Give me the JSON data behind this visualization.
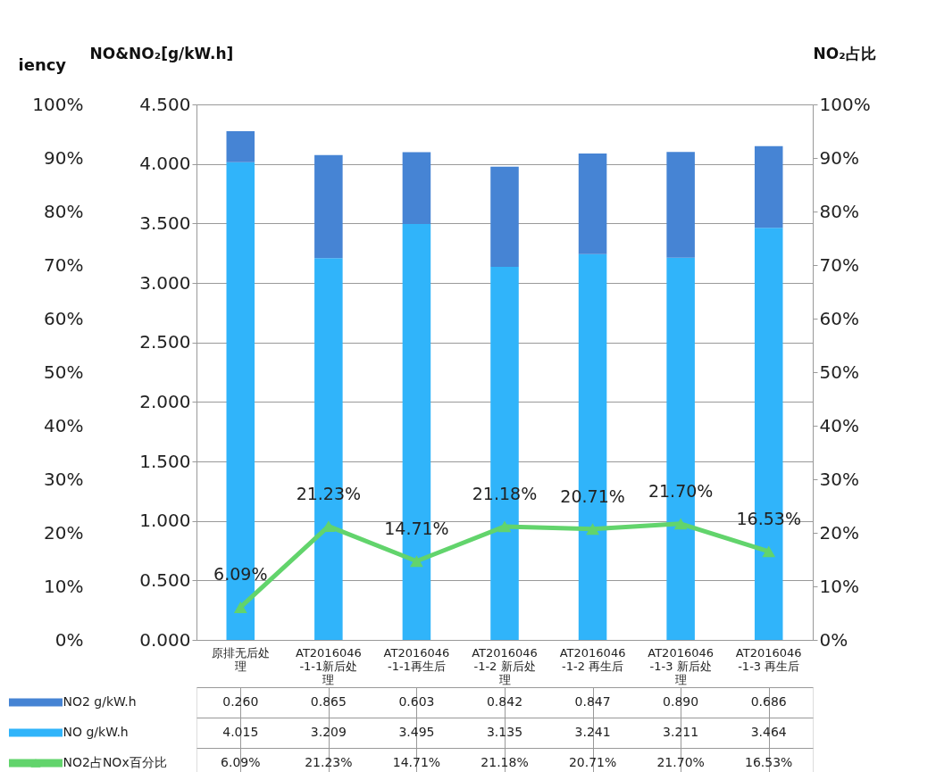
{
  "chart_data": {
    "type": "bar",
    "stacked": true,
    "ylabel": "NO&NO₂[g/kW.h]",
    "y2label": "NO₂占比",
    "y3label": "iency",
    "categories": [
      "原排无后处理",
      "AT2016046-1-1新后处理",
      "AT2016046-1-1再生后",
      "AT2016046-1-2 新后处理",
      "AT2016046-1-2 再生后",
      "AT2016046-1-3 新后处理",
      "AT2016046-1-3 再生后"
    ],
    "series": [
      {
        "name": "NO g/kW.h",
        "color": "#30b4fa",
        "values": [
          4.015,
          3.209,
          3.495,
          3.135,
          3.241,
          3.211,
          3.464
        ],
        "value_labels": [
          "4.015",
          "3.209",
          "3.495",
          "3.135",
          "3.241",
          "3.211",
          "3.464"
        ]
      },
      {
        "name": "NO2 g/kW.h",
        "color": "#4684d4",
        "values": [
          0.26,
          0.865,
          0.603,
          0.842,
          0.847,
          0.89,
          0.686
        ],
        "value_labels": [
          "0.260",
          "0.865",
          "0.603",
          "0.842",
          "0.847",
          "0.890",
          "0.686"
        ]
      },
      {
        "name": "NO2占NOx百分比",
        "type": "line",
        "axis": "y2",
        "color": "#62d46c",
        "marker": "triangle",
        "values": [
          6.09,
          21.23,
          14.71,
          21.18,
          20.71,
          21.7,
          16.53
        ],
        "value_labels": [
          "6.09%",
          "21.23%",
          "14.71%",
          "21.18%",
          "20.71%",
          "21.70%",
          "16.53%"
        ]
      }
    ],
    "ylim": [
      0,
      4.5
    ],
    "yticks": [
      {
        "value": 0,
        "label": "0.000"
      },
      {
        "value": 0.5,
        "label": "0.500"
      },
      {
        "value": 1,
        "label": "1.000"
      },
      {
        "value": 1.5,
        "label": "1.500"
      },
      {
        "value": 2,
        "label": "2.000"
      },
      {
        "value": 2.5,
        "label": "2.500"
      },
      {
        "value": 3,
        "label": "3.000"
      },
      {
        "value": 3.5,
        "label": "3.500"
      },
      {
        "value": 4,
        "label": "4.000"
      },
      {
        "value": 4.5,
        "label": "4.500"
      }
    ],
    "y2lim": [
      0,
      100
    ],
    "y2ticks": [
      {
        "value": 0,
        "label": "0%"
      },
      {
        "value": 10,
        "label": "10%"
      },
      {
        "value": 20,
        "label": "20%"
      },
      {
        "value": 30,
        "label": "30%"
      },
      {
        "value": 40,
        "label": "40%"
      },
      {
        "value": 50,
        "label": "50%"
      },
      {
        "value": 60,
        "label": "60%"
      },
      {
        "value": 70,
        "label": "70%"
      },
      {
        "value": 80,
        "label": "80%"
      },
      {
        "value": 90,
        "label": "90%"
      },
      {
        "value": 100,
        "label": "100%"
      }
    ],
    "y3lim": [
      0,
      100
    ],
    "y3ticks": [
      {
        "value": 0,
        "label": "0%"
      },
      {
        "value": 10,
        "label": "10%"
      },
      {
        "value": 20,
        "label": "20%"
      },
      {
        "value": 30,
        "label": "30%"
      },
      {
        "value": 40,
        "label": "40%"
      },
      {
        "value": 50,
        "label": "50%"
      },
      {
        "value": 60,
        "label": "60%"
      },
      {
        "value": 70,
        "label": "70%"
      },
      {
        "value": 80,
        "label": "80%"
      },
      {
        "value": 90,
        "label": "90%"
      },
      {
        "value": 100,
        "label": "100%"
      }
    ],
    "grid": "y",
    "legend": "bottom"
  }
}
